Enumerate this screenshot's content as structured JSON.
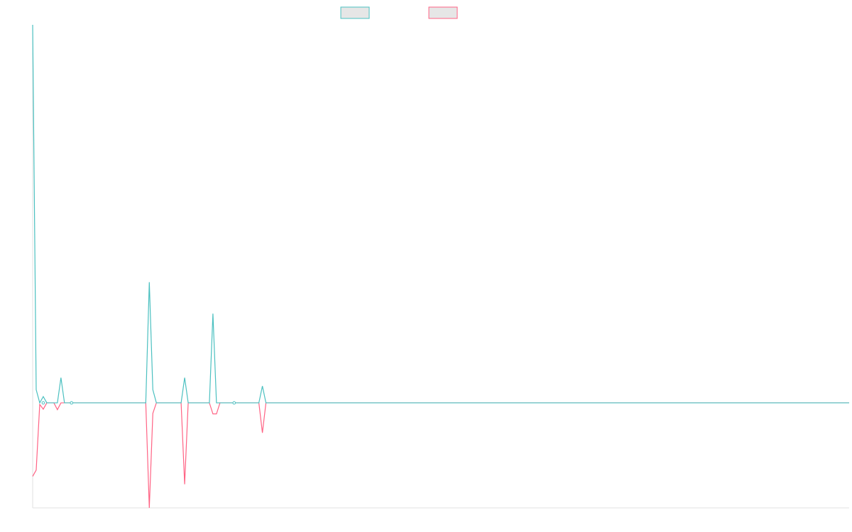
{
  "chart_data": {
    "type": "line",
    "title": "",
    "xlabel": "",
    "ylabel": "",
    "grid": false,
    "legend_position": "top-center",
    "n_points": 232,
    "ylim": [
      -20,
      72
    ],
    "series": [
      {
        "name": "",
        "color": "#4bc0c0",
        "points": [
          [
            0,
            72
          ],
          [
            1,
            2.5
          ],
          [
            2,
            0
          ],
          [
            3,
            1.2
          ],
          [
            4,
            0
          ],
          [
            5,
            0
          ],
          [
            6,
            0
          ],
          [
            7,
            0
          ],
          [
            8,
            4.8
          ],
          [
            9,
            0
          ],
          [
            32,
            0
          ],
          [
            33,
            23
          ],
          [
            34,
            2.5
          ],
          [
            35,
            0
          ],
          [
            42,
            0
          ],
          [
            43,
            4.8
          ],
          [
            44,
            0
          ],
          [
            50,
            0
          ],
          [
            51,
            17
          ],
          [
            52,
            0
          ],
          [
            64,
            0
          ],
          [
            65,
            3.2
          ],
          [
            66,
            0
          ],
          [
            231,
            0
          ]
        ]
      },
      {
        "name": "",
        "color": "#ff6384",
        "points": [
          [
            0,
            -14
          ],
          [
            1,
            -12.8
          ],
          [
            2,
            -0.3
          ],
          [
            3,
            -1.2
          ],
          [
            4,
            0
          ],
          [
            5,
            0
          ],
          [
            6,
            0
          ],
          [
            7,
            -1.3
          ],
          [
            8,
            0
          ],
          [
            32,
            0
          ],
          [
            33,
            -20
          ],
          [
            34,
            -2
          ],
          [
            35,
            0
          ],
          [
            42,
            0
          ],
          [
            43,
            -15.5
          ],
          [
            44,
            0
          ],
          [
            50,
            0
          ],
          [
            51,
            -2.1
          ],
          [
            52,
            -2.1
          ],
          [
            53,
            0
          ],
          [
            64,
            0
          ],
          [
            65,
            -5.7
          ],
          [
            66,
            0
          ],
          [
            231,
            0
          ]
        ]
      }
    ]
  }
}
